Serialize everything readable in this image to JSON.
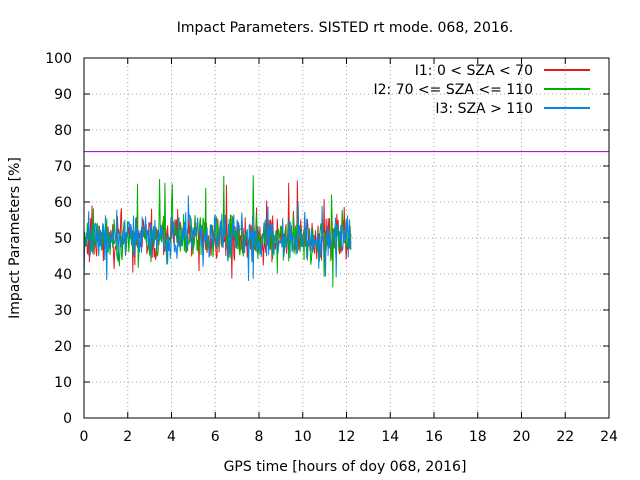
{
  "chart_data": {
    "type": "line",
    "title": "Impact Parameters. SISTED rt mode. 068, 2016.",
    "xlabel": "GPS time [hours of doy 068, 2016]",
    "ylabel": "Impact Parameters [%]",
    "xlim": [
      0,
      24
    ],
    "ylim": [
      0,
      100
    ],
    "xticks": [
      0,
      2,
      4,
      6,
      8,
      10,
      12,
      14,
      16,
      18,
      20,
      22,
      24
    ],
    "yticks": [
      0,
      10,
      20,
      30,
      40,
      50,
      60,
      70,
      80,
      90,
      100
    ],
    "grid": true,
    "legend_position": "top-right",
    "threshold": {
      "value": 74,
      "color": "#9400d3"
    },
    "series": [
      {
        "name": "I1: 0 < SZA < 70",
        "color": "#e41a1c",
        "x_range": [
          0,
          12.2
        ],
        "center": 50,
        "noise_range": [
          37,
          66
        ],
        "samples": 400,
        "seed": 11
      },
      {
        "name": "I2: 70 <= SZA <= 110",
        "color": "#00b000",
        "x_range": [
          0,
          12.2
        ],
        "center": 50,
        "noise_range": [
          35.5,
          68
        ],
        "samples": 400,
        "seed": 23
      },
      {
        "name": "I3: SZA > 110",
        "color": "#0a84e0",
        "x_range": [
          0,
          12.2
        ],
        "center": 50,
        "noise_range": [
          37.5,
          62
        ],
        "samples": 400,
        "seed": 37
      }
    ]
  }
}
